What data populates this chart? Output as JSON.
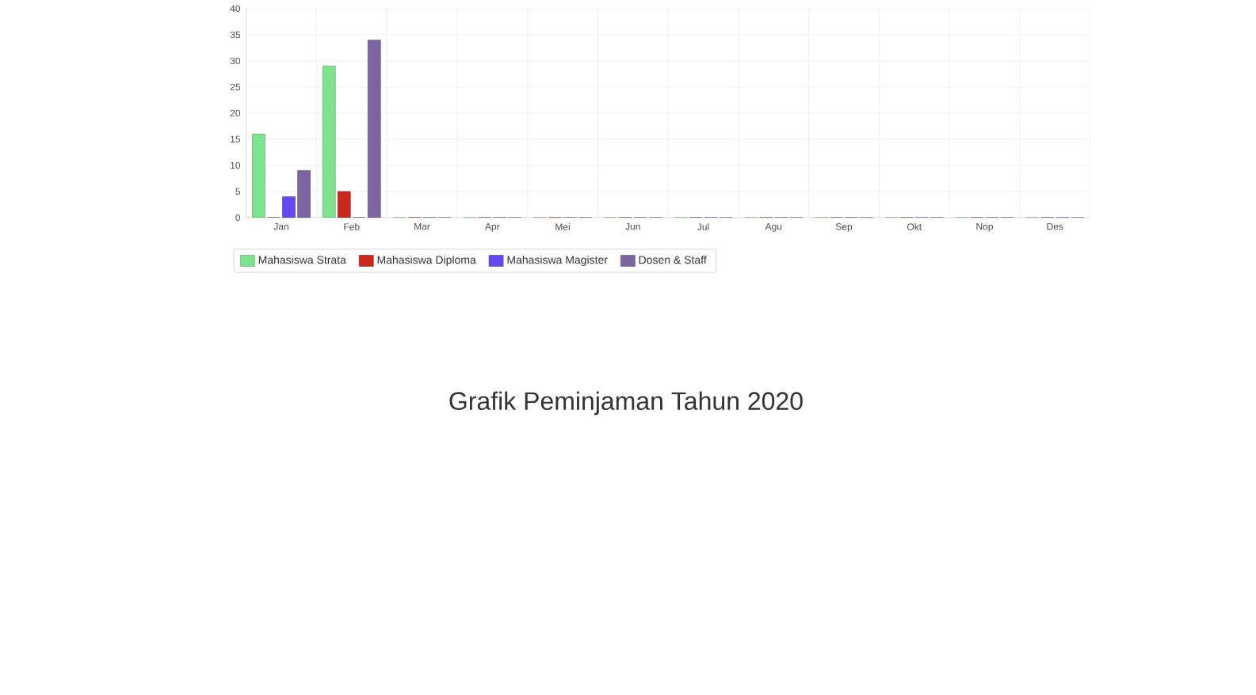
{
  "chart_data": {
    "type": "bar",
    "title": "Grafik Peminjaman Tahun 2020",
    "categories": [
      "Jan",
      "Feb",
      "Mar",
      "Apr",
      "Mei",
      "Jun",
      "Jul",
      "Agu",
      "Sep",
      "Okt",
      "Nop",
      "Des"
    ],
    "series": [
      {
        "name": "Mahasiswa Strata",
        "color": "#7de38f",
        "values": [
          16,
          29,
          0,
          0,
          0,
          0,
          0,
          0,
          0,
          0,
          0,
          0
        ]
      },
      {
        "name": "Mahasiswa Diploma",
        "color": "#c9281d",
        "values": [
          0,
          5,
          0,
          0,
          0,
          0,
          0,
          0,
          0,
          0,
          0,
          0
        ]
      },
      {
        "name": "Mahasiswa Magister",
        "color": "#6449f0",
        "values": [
          4,
          0,
          0,
          0,
          0,
          0,
          0,
          0,
          0,
          0,
          0,
          0
        ]
      },
      {
        "name": "Dosen & Staff",
        "color": "#7d65a2",
        "values": [
          9,
          34,
          0,
          0,
          0,
          0,
          0,
          0,
          0,
          0,
          0,
          0
        ]
      }
    ],
    "ylim": [
      0,
      40
    ],
    "yticks": [
      0,
      5,
      10,
      15,
      20,
      25,
      30,
      35,
      40
    ],
    "grid": true,
    "legend": "bottom"
  }
}
